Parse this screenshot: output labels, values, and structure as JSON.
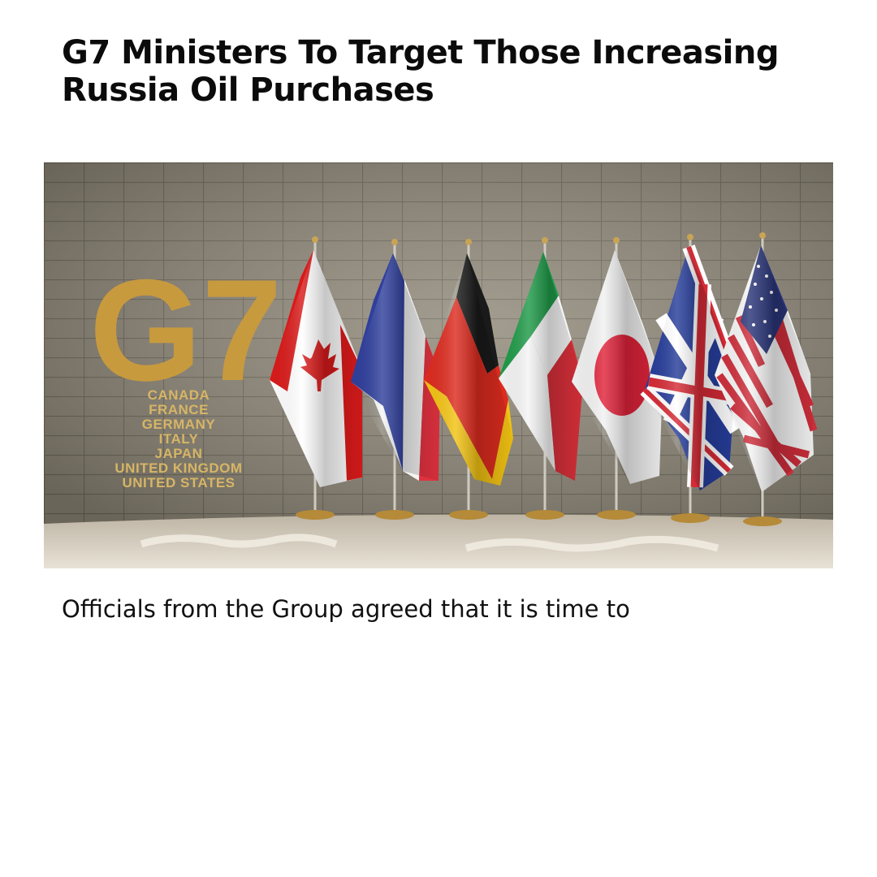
{
  "article": {
    "headline": "G7 Ministers To Target Those Increasing Russia Oil Purchases",
    "excerpt": "Officials from the Group agreed that it is time to"
  },
  "image": {
    "sign_text": "G7",
    "countries": [
      "CANADA",
      "FRANCE",
      "GERMANY",
      "ITALY",
      "JAPAN",
      "UNITED KINGDOM",
      "UNITED STATES"
    ],
    "flags": [
      "canada-flag",
      "france-flag",
      "germany-flag",
      "italy-flag",
      "japan-flag",
      "united-kingdom-flag",
      "united-states-flag"
    ],
    "colors": {
      "wall": "#8c8575",
      "gold": "#c89a3e",
      "table": "#d9d2c4"
    }
  }
}
